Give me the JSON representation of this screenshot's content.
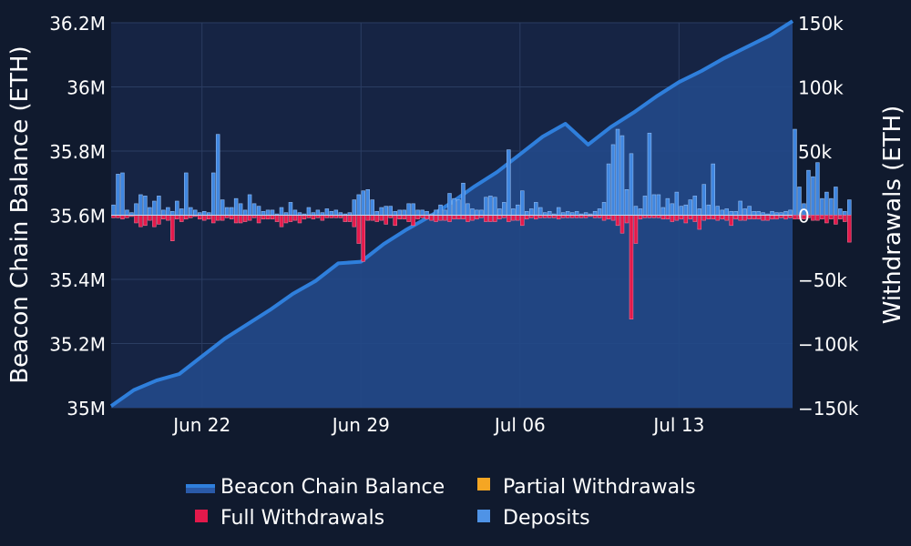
{
  "chart_data": {
    "type": "bar",
    "title": "",
    "x_start": "2025-06-18",
    "x_tick_labels": [
      "Jun 22",
      "Jun 29",
      "Jul 06",
      "Jul 13"
    ],
    "y_left": {
      "label": "Beacon Chain Balance (ETH)",
      "range": [
        35000000,
        36200000
      ],
      "tick_labels": [
        "35M",
        "35.2M",
        "35.4M",
        "35.6M",
        "35.8M",
        "36M",
        "36.2M"
      ]
    },
    "y_right": {
      "label": "Withdrawals (ETH)",
      "range": [
        -150000,
        150000
      ],
      "tick_labels": [
        "−150k",
        "−100k",
        "−50k",
        "0",
        "50k",
        "100k",
        "150k"
      ]
    },
    "grid": true,
    "legend_position": "bottom",
    "legend": [
      {
        "name": "Beacon Chain Balance",
        "color": "#2f7fdc",
        "kind": "line"
      },
      {
        "name": "Partial Withdrawals",
        "color": "#f5a623",
        "kind": "bar"
      },
      {
        "name": "Full Withdrawals",
        "color": "#e3194b",
        "kind": "bar"
      },
      {
        "name": "Deposits",
        "color": "#4f93e6",
        "kind": "bar"
      }
    ],
    "series": [
      {
        "name": "Beacon Chain Balance",
        "axis": "left",
        "type": "area",
        "x": [
          "2025-06-18",
          "2025-06-19",
          "2025-06-20",
          "2025-06-21",
          "2025-06-22",
          "2025-06-23",
          "2025-06-24",
          "2025-06-25",
          "2025-06-26",
          "2025-06-27",
          "2025-06-28",
          "2025-06-29",
          "2025-06-30",
          "2025-07-01",
          "2025-07-02",
          "2025-07-03",
          "2025-07-04",
          "2025-07-05",
          "2025-07-06",
          "2025-07-07",
          "2025-07-08",
          "2025-07-09",
          "2025-07-10",
          "2025-07-11",
          "2025-07-12",
          "2025-07-13",
          "2025-07-14",
          "2025-07-15",
          "2025-07-16",
          "2025-07-17",
          "2025-07-18"
        ],
        "values": [
          35005000,
          35055000,
          35085000,
          35105000,
          35160000,
          35215000,
          35260000,
          35305000,
          35355000,
          35395000,
          35450000,
          35455000,
          35510000,
          35555000,
          35595000,
          35640000,
          35690000,
          35735000,
          35790000,
          35845000,
          35885000,
          35820000,
          35875000,
          35920000,
          35970000,
          36015000,
          36050000,
          36090000,
          36125000,
          36160000,
          36205000
        ]
      },
      {
        "name": "Deposits",
        "axis": "right",
        "type": "bar",
        "x_start": "2025-06-18",
        "values": [
          8000,
          32000,
          33000,
          4000,
          2000,
          9000,
          16000,
          15000,
          6000,
          11000,
          15000,
          4000,
          6000,
          3000,
          11000,
          5000,
          33000,
          6000,
          4000,
          2000,
          3000,
          2000,
          33000,
          63000,
          12000,
          6000,
          6000,
          13000,
          9000,
          4000,
          16000,
          9000,
          7000,
          3000,
          4000,
          4000,
          1000,
          6000,
          2000,
          10000,
          4000,
          2000,
          1000,
          6000,
          2000,
          4000,
          2000,
          5000,
          3000,
          4000,
          2000,
          1000,
          2000,
          12000,
          16000,
          19000,
          20000,
          12000,
          3000,
          6000,
          7000,
          7000,
          3000,
          4000,
          4000,
          9000,
          9000,
          4000,
          4000,
          3000,
          1000,
          4000,
          8000,
          4000,
          17000,
          13000,
          12000,
          25000,
          9000,
          5000,
          4000,
          4000,
          14000,
          15000,
          14000,
          5000,
          10000,
          51000,
          5000,
          8000,
          19000,
          3000,
          5000,
          10000,
          6000,
          2000,
          3000,
          1000,
          6000,
          2000,
          3000,
          2000,
          3000,
          1000,
          2000,
          1000,
          3000,
          5000,
          10000,
          40000,
          55000,
          67000,
          62000,
          20000,
          48000,
          7000,
          5000,
          15000,
          64000,
          16000,
          16000,
          6000,
          13000,
          9000,
          18000,
          7000,
          8000,
          12000,
          15000,
          5000,
          24000,
          8000,
          40000,
          7000,
          4000,
          5000,
          3000,
          3000,
          11000,
          5000,
          7000,
          3000,
          3000,
          2000,
          1000,
          3000,
          2000,
          2000,
          3000,
          4000,
          67000,
          22000,
          9000,
          35000,
          30000,
          41000,
          13000,
          18000,
          13000,
          22000,
          5000,
          3000,
          12000
        ]
      },
      {
        "name": "Full Withdrawals",
        "axis": "right",
        "type": "bar",
        "x_start": "2025-06-18",
        "values": [
          -2000,
          -2000,
          -3000,
          -2000,
          -1000,
          -6000,
          -9000,
          -8000,
          -4000,
          -9000,
          -7000,
          -3000,
          -4000,
          -20000,
          -3000,
          -5000,
          -3000,
          -2000,
          -1000,
          -3000,
          -4000,
          -3000,
          -6000,
          -4000,
          -4000,
          -2000,
          -3000,
          -6000,
          -6000,
          -5000,
          -4000,
          -2000,
          -6000,
          -3000,
          -3000,
          -3000,
          -5000,
          -9000,
          -6000,
          -5000,
          -4000,
          -6000,
          -3000,
          -2000,
          -3000,
          -2000,
          -4000,
          -2000,
          -2000,
          -2000,
          -2000,
          -5000,
          -5000,
          -9000,
          -22000,
          -36000,
          -4000,
          -4000,
          -5000,
          -4000,
          -7000,
          -2000,
          -8000,
          -3000,
          -3000,
          -5000,
          -8000,
          -3000,
          -2000,
          -3000,
          -4000,
          -5000,
          -4000,
          -4000,
          -5000,
          -3000,
          -3000,
          -3000,
          -5000,
          -4000,
          -3000,
          -2000,
          -5000,
          -5000,
          -5000,
          -3000,
          -2000,
          -5000,
          -4000,
          -4000,
          -8000,
          -3000,
          -2000,
          -3000,
          -2000,
          -2000,
          -2000,
          -2000,
          -3000,
          -2000,
          -2000,
          -2000,
          -2000,
          -2000,
          -2000,
          -1000,
          -2000,
          -2000,
          -4000,
          -3000,
          -4000,
          -8000,
          -14000,
          -6000,
          -81000,
          -22000,
          -3000,
          -2000,
          -2000,
          -2000,
          -2000,
          -3000,
          -3000,
          -5000,
          -4000,
          -3000,
          -6000,
          -3000,
          -5000,
          -11000,
          -4000,
          -3000,
          -3000,
          -4000,
          -3000,
          -4000,
          -8000,
          -3000,
          -4000,
          -4000,
          -3000,
          -3000,
          -3000,
          -4000,
          -4000,
          -3000,
          -3000,
          -2000,
          -3000,
          -2000,
          -3000,
          -3000,
          -3000,
          -2000,
          -4000,
          -4000,
          -3000,
          -6000,
          -3000,
          -7000,
          -3000,
          -5000,
          -21000
        ]
      },
      {
        "name": "Partial Withdrawals",
        "axis": "right",
        "type": "bar",
        "x_start": "2025-06-18",
        "values": []
      }
    ]
  }
}
